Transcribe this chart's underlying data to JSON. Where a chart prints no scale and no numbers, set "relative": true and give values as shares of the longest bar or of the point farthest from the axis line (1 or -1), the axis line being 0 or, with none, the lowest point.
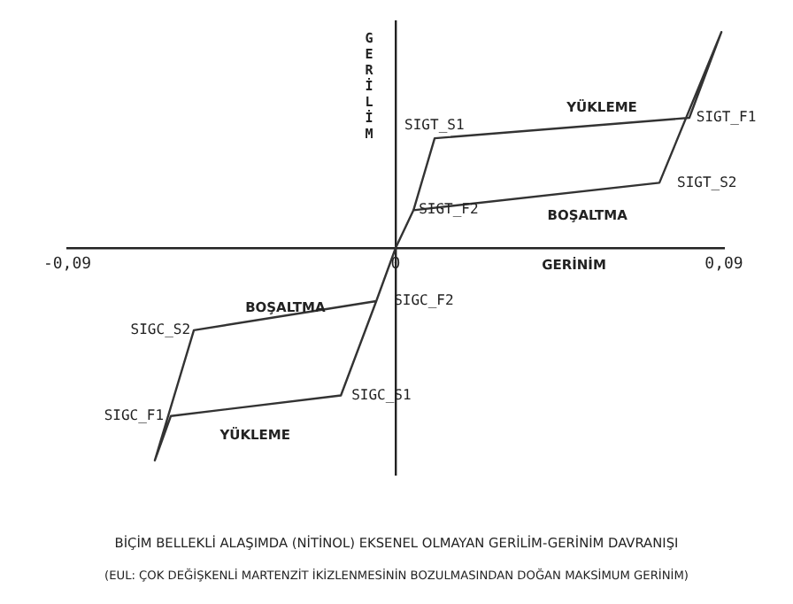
{
  "chart_data": {
    "type": "line",
    "title": "BİÇİM BELLEKLİ ALAŞIMDA (NİTİNOL) EKSENEL OLMAYAN GERİLİM-GERİNİM DAVRANIŞI",
    "subtitle": "(EUL: ÇOK DEĞİŞKENLİ MARTENZİT İKİZLENMESİNİN BOZULMASINDAN DOĞAN MAKSİMUM GERİNİM)",
    "xlabel": "GERİNİM",
    "ylabel": "GERİLİM",
    "relative": true,
    "xlim": [
      -0.09,
      0.09
    ],
    "xticks": [
      {
        "value": -0.09,
        "label": "-0,09"
      },
      {
        "value": 0,
        "label": "0"
      },
      {
        "value": 0.09,
        "label": "0,09"
      }
    ],
    "legend": false,
    "marker": "none",
    "line_style": "solid",
    "series": [
      {
        "color": "#333333",
        "x": [
          0.0049,
          0.0723,
          0.0893,
          0.0805,
          0.0107,
          0.0049,
          0,
          -0.0053,
          -0.015,
          -0.0616,
          -0.066,
          -0.0553,
          -0.0053
        ],
        "values": [
          0.175,
          0.302,
          1.0,
          0.603,
          0.508,
          0.175,
          0,
          -0.246,
          -0.683,
          -0.778,
          -0.984,
          -0.381,
          -0.246
        ]
      }
    ],
    "annotations": [
      {
        "text": "SIGT_S1",
        "x": 0.0107,
        "y": 0.508
      },
      {
        "text": "SIGT_F1",
        "x": 0.0805,
        "y": 0.603
      },
      {
        "text": "SIGT_S2",
        "x": 0.0723,
        "y": 0.302
      },
      {
        "text": "SIGT_F2",
        "x": 0.0049,
        "y": 0.175
      },
      "YÜKLEME",
      "BOŞALTMA",
      {
        "text": "SIGC_F2",
        "x": -0.0053,
        "y": -0.246
      },
      "BOŞALTMA",
      {
        "text": "SIGC_S2",
        "x": -0.0553,
        "y": -0.381
      },
      {
        "text": "SIGC_S1",
        "x": -0.015,
        "y": -0.683
      },
      {
        "text": "SIGC_F1",
        "x": -0.0616,
        "y": -0.778
      },
      "YÜKLEME"
    ]
  }
}
